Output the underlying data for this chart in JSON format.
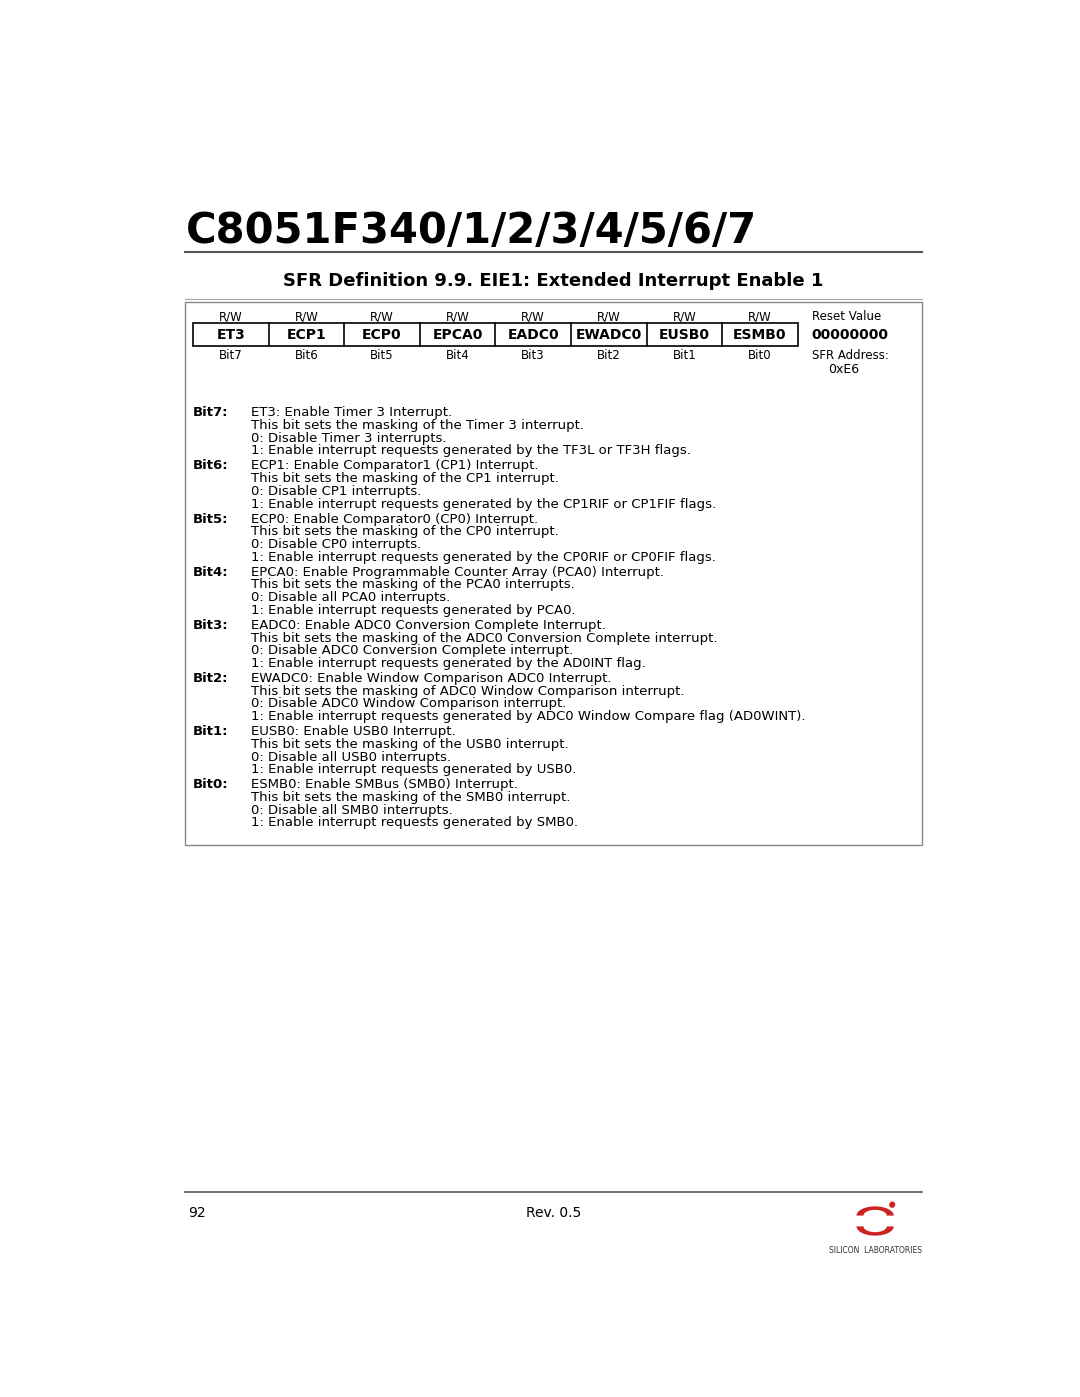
{
  "title": "C8051F340/1/2/3/4/5/6/7",
  "sfr_title": "SFR Definition 9.9. EIE1: Extended Interrupt Enable 1",
  "page_number": "92",
  "rev": "Rev. 0.5",
  "reset_value": "00000000",
  "sfr_address": "0xE6",
  "bits": [
    "ET3",
    "ECP1",
    "ECP0",
    "EPCA0",
    "EADC0",
    "EWADC0",
    "EUSB0",
    "ESMB0"
  ],
  "bit_labels": [
    "Bit7",
    "Bit6",
    "Bit5",
    "Bit4",
    "Bit3",
    "Bit2",
    "Bit1",
    "Bit0"
  ],
  "rw_labels": [
    "R/W",
    "R/W",
    "R/W",
    "R/W",
    "R/W",
    "R/W",
    "R/W",
    "R/W"
  ],
  "descriptions": [
    {
      "bit": "Bit7:",
      "lines": [
        "ET3: Enable Timer 3 Interrupt.",
        "This bit sets the masking of the Timer 3 interrupt.",
        "0: Disable Timer 3 interrupts.",
        "1: Enable interrupt requests generated by the TF3L or TF3H flags."
      ]
    },
    {
      "bit": "Bit6:",
      "lines": [
        "ECP1: Enable Comparator1 (CP1) Interrupt.",
        "This bit sets the masking of the CP1 interrupt.",
        "0: Disable CP1 interrupts.",
        "1: Enable interrupt requests generated by the CP1RIF or CP1FIF flags."
      ]
    },
    {
      "bit": "Bit5:",
      "lines": [
        "ECP0: Enable Comparator0 (CP0) Interrupt.",
        "This bit sets the masking of the CP0 interrupt.",
        "0: Disable CP0 interrupts.",
        "1: Enable interrupt requests generated by the CP0RIF or CP0FIF flags."
      ]
    },
    {
      "bit": "Bit4:",
      "lines": [
        "EPCA0: Enable Programmable Counter Array (PCA0) Interrupt.",
        "This bit sets the masking of the PCA0 interrupts.",
        "0: Disable all PCA0 interrupts.",
        "1: Enable interrupt requests generated by PCA0."
      ]
    },
    {
      "bit": "Bit3:",
      "lines": [
        "EADC0: Enable ADC0 Conversion Complete Interrupt.",
        "This bit sets the masking of the ADC0 Conversion Complete interrupt.",
        "0: Disable ADC0 Conversion Complete interrupt.",
        "1: Enable interrupt requests generated by the AD0INT flag."
      ]
    },
    {
      "bit": "Bit2:",
      "lines": [
        "EWADC0: Enable Window Comparison ADC0 Interrupt.",
        "This bit sets the masking of ADC0 Window Comparison interrupt.",
        "0: Disable ADC0 Window Comparison interrupt.",
        "1: Enable interrupt requests generated by ADC0 Window Compare flag (AD0WINT)."
      ]
    },
    {
      "bit": "Bit1:",
      "lines": [
        "EUSB0: Enable USB0 Interrupt.",
        "This bit sets the masking of the USB0 interrupt.",
        "0: Disable all USB0 interrupts.",
        "1: Enable interrupt requests generated by USB0."
      ]
    },
    {
      "bit": "Bit0:",
      "lines": [
        "ESMB0: Enable SMBus (SMB0) Interrupt.",
        "This bit sets the masking of the SMB0 interrupt.",
        "0: Disable all SMB0 interrupts.",
        "1: Enable interrupt requests generated by SMB0."
      ]
    }
  ],
  "background_color": "#ffffff",
  "box_border_color": "#000000",
  "text_color": "#000000",
  "table_cell_bg": "#ffffff",
  "logo_color": "#cc2222",
  "footer_line_color": "#555555",
  "sfr_line_color": "#aaaaaa",
  "outer_box_color": "#888888"
}
